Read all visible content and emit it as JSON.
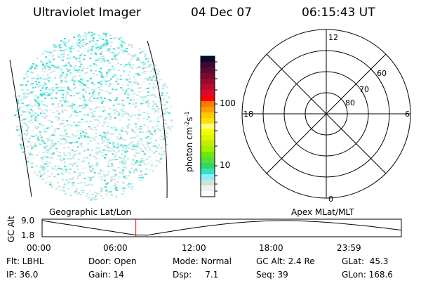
{
  "header": {
    "instrument": "Ultraviolet Imager",
    "date": "04 Dec 07",
    "time": "06:15:43 UT"
  },
  "colorbar": {
    "label": "photon cm",
    "exp1": "-2",
    "unit2": "s",
    "exp2": "-1",
    "ticks": [
      "100",
      "10"
    ],
    "colors": [
      "#0a0a30",
      "#3a0a30",
      "#5a0a30",
      "#7a0a30",
      "#9a0a30",
      "#b80a30",
      "#d80a30",
      "#ff0000",
      "#ff7a00",
      "#ffa000",
      "#ffc800",
      "#ffe000",
      "#ffff80",
      "#f0ff00",
      "#e0f400",
      "#c0f000",
      "#a0f000",
      "#70e800",
      "#50e040",
      "#30d860",
      "#30e0d0",
      "#90ecf4",
      "#d0e0e0",
      "#e8f4ec",
      "#ffffff"
    ]
  },
  "polar": {
    "labels": {
      "top": "12",
      "left": "18",
      "right": "6",
      "bottom": "0"
    },
    "rings": [
      "60",
      "70",
      "80"
    ]
  },
  "timeline": {
    "left_label": "Geographic Lat/Lon",
    "right_label": "Apex MLat/MLT",
    "ylabel": "GC Alt",
    "ymax": "9.0",
    "ymin": "1.8",
    "xticks": [
      "00:00",
      "06:00",
      "12:00",
      "18:00",
      "23:59"
    ],
    "current_time_fraction": 0.261
  },
  "info": {
    "flt": "Flt: LBHL",
    "door": "Door: Open",
    "mode": "Mode: Normal",
    "gcalt": "GC Alt: 2.4 Re",
    "glat": "GLat:  45.3",
    "ip": "IP: 36.0",
    "gain": "Gain: 14",
    "dsp": "Dsp:     7.1",
    "seq": "Seq: 39",
    "glon": "GLon: 168.6"
  }
}
